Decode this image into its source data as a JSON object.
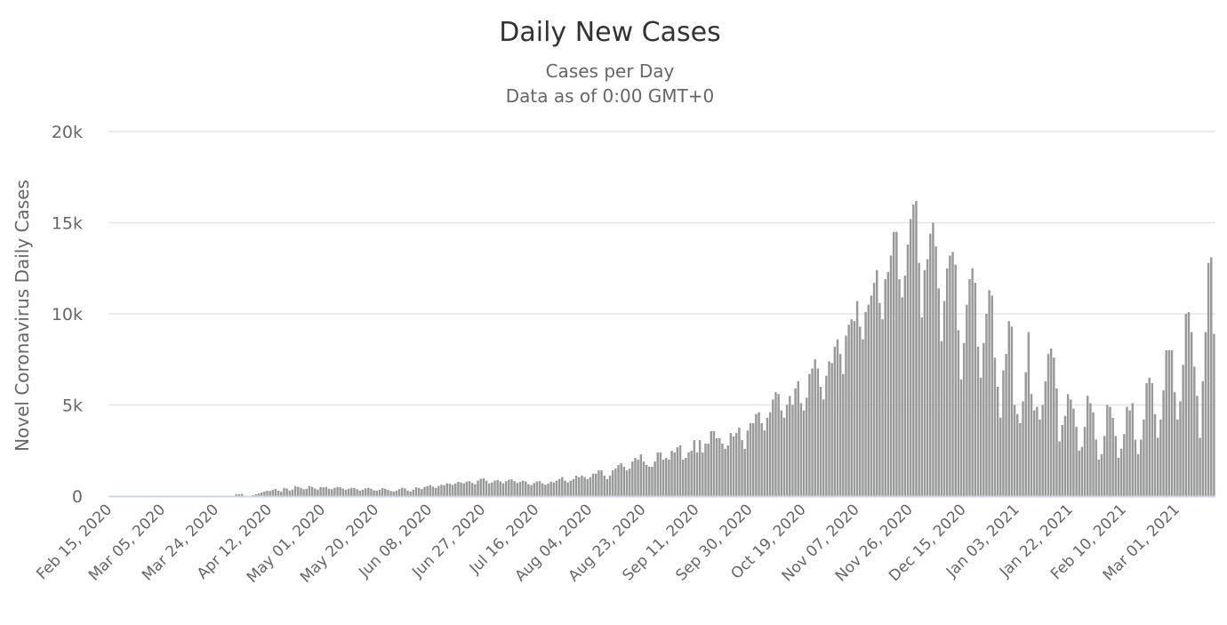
{
  "chart_data": {
    "type": "bar",
    "title": "Daily New Cases",
    "subtitle_lines": [
      "Cases per Day",
      "Data as of 0:00 GMT+0"
    ],
    "xlabel": "",
    "ylabel": "Novel Coronavirus Daily Cases",
    "x_start_date": "2020-02-15",
    "x_interval_days": 1,
    "x_tick_every": 19,
    "x_tick_labels": [
      "Feb 15, 2020",
      "Mar 05, 2020",
      "Mar 24, 2020",
      "Apr 12, 2020",
      "May 01, 2020",
      "May 20, 2020",
      "Jun 08, 2020",
      "Jun 27, 2020",
      "Jul 16, 2020",
      "Aug 04, 2020",
      "Aug 23, 2020",
      "Sep 11, 2020",
      "Sep 30, 2020",
      "Oct 19, 2020",
      "Nov 07, 2020",
      "Nov 26, 2020",
      "Dec 15, 2020",
      "Jan 03, 2021",
      "Jan 22, 2021",
      "Feb 10, 2021",
      "Mar 01, 2021"
    ],
    "y_tick_values": [
      0,
      5000,
      10000,
      15000,
      20000
    ],
    "y_tick_labels": [
      "0",
      "5k",
      "10k",
      "15k",
      "20k"
    ],
    "ylim": [
      0,
      20000
    ],
    "grid": true,
    "legend": "none",
    "bar_color": "#999999",
    "value_unit": "thousands of cases",
    "values_thousands": [
      0,
      0,
      0,
      0,
      0,
      0,
      0,
      0,
      0,
      0,
      0,
      0,
      0,
      0,
      0,
      0,
      0,
      0,
      0,
      0,
      0,
      0,
      0,
      0,
      0,
      0,
      0,
      0,
      0,
      0,
      0,
      0,
      0,
      0,
      0,
      0,
      0,
      0,
      0,
      0,
      0,
      0,
      0,
      0,
      0,
      0.1,
      0.1,
      0.12,
      0,
      0,
      0,
      0.05,
      0.1,
      0.15,
      0.2,
      0.25,
      0.3,
      0.28,
      0.35,
      0.4,
      0.3,
      0.25,
      0.45,
      0.42,
      0.3,
      0.35,
      0.55,
      0.5,
      0.45,
      0.38,
      0.4,
      0.55,
      0.5,
      0.42,
      0.35,
      0.5,
      0.48,
      0.5,
      0.4,
      0.38,
      0.45,
      0.5,
      0.48,
      0.42,
      0.35,
      0.4,
      0.45,
      0.44,
      0.38,
      0.3,
      0.35,
      0.42,
      0.45,
      0.4,
      0.32,
      0.3,
      0.35,
      0.44,
      0.4,
      0.35,
      0.28,
      0.25,
      0.3,
      0.38,
      0.45,
      0.42,
      0.3,
      0.25,
      0.35,
      0.48,
      0.45,
      0.38,
      0.5,
      0.55,
      0.6,
      0.52,
      0.45,
      0.55,
      0.62,
      0.6,
      0.7,
      0.68,
      0.62,
      0.7,
      0.78,
      0.75,
      0.7,
      0.8,
      0.82,
      0.72,
      0.65,
      0.85,
      0.95,
      0.98,
      0.85,
      0.7,
      0.75,
      0.85,
      0.88,
      0.8,
      0.7,
      0.82,
      0.9,
      0.92,
      0.82,
      0.72,
      0.78,
      0.85,
      0.8,
      0.65,
      0.6,
      0.72,
      0.8,
      0.82,
      0.7,
      0.62,
      0.68,
      0.78,
      0.75,
      0.85,
      0.93,
      1.04,
      0.85,
      0.75,
      0.85,
      0.93,
      1.12,
      1.04,
      1.12,
      1.04,
      0.93,
      1.04,
      1.23,
      1.23,
      1.41,
      1.41,
      1.12,
      0.93,
      1.12,
      1.41,
      1.51,
      1.71,
      1.8,
      1.61,
      1.41,
      1.51,
      1.9,
      2.1,
      2.0,
      2.29,
      1.9,
      1.71,
      1.61,
      1.61,
      1.9,
      2.39,
      2.39,
      2.0,
      2.1,
      2.0,
      2.49,
      2.39,
      2.68,
      2.78,
      2.0,
      2.1,
      2.39,
      2.49,
      3.07,
      2.39,
      3.07,
      2.39,
      2.88,
      2.88,
      3.56,
      3.56,
      3.17,
      3.17,
      2.88,
      2.59,
      2.78,
      3.46,
      3.27,
      3.46,
      3.76,
      3.07,
      2.59,
      3.6,
      4.0,
      4.0,
      4.5,
      4.6,
      4.0,
      3.6,
      4.3,
      4.6,
      5.3,
      5.7,
      5.6,
      4.7,
      4.3,
      5.0,
      5.5,
      5.0,
      5.9,
      6.3,
      5.1,
      4.7,
      5.4,
      6.7,
      7.0,
      7.5,
      7.0,
      6.0,
      5.3,
      6.6,
      7.4,
      7.3,
      8.2,
      8.6,
      7.8,
      6.7,
      8.8,
      9.4,
      9.7,
      9.6,
      10.7,
      9.3,
      8.6,
      10.1,
      10.5,
      11.0,
      11.7,
      12.4,
      10.6,
      9.7,
      11.9,
      12.3,
      13.2,
      14.5,
      14.5,
      11.9,
      10.9,
      12.1,
      13.8,
      15.2,
      16.0,
      16.2,
      12.8,
      9.8,
      12.4,
      13.0,
      14.4,
      15.0,
      13.7,
      11.4,
      8.5,
      10.7,
      12.5,
      13.2,
      13.4,
      12.7,
      9.1,
      6.4,
      8.4,
      10.5,
      11.9,
      12.5,
      11.7,
      8.2,
      6.5,
      8.4,
      10.0,
      11.3,
      11.0,
      7.6,
      6.0,
      4.3,
      6.9,
      7.8,
      9.6,
      9.3,
      5.0,
      4.5,
      4.0,
      5.2,
      6.8,
      9.0,
      5.6,
      4.7,
      4.9,
      4.2,
      5.0,
      6.3,
      7.8,
      8.1,
      7.6,
      5.9,
      3.0,
      3.9,
      4.4,
      5.6,
      5.3,
      4.8,
      3.8,
      2.5,
      2.7,
      3.8,
      5.5,
      5.1,
      4.6,
      3.1,
      2.0,
      2.3,
      3.3,
      5.0,
      4.9,
      4.3,
      3.3,
      2.1,
      2.6,
      3.4,
      4.9,
      4.7,
      5.1,
      3.1,
      2.3,
      3.1,
      4.2,
      6.2,
      6.5,
      6.2,
      4.5,
      3.2,
      4.2,
      5.8,
      8.0,
      8.0,
      8.0,
      5.7,
      4.2,
      5.2,
      7.2,
      10.0,
      10.1,
      9.0,
      7.1,
      5.5,
      3.2,
      6.3,
      9.0,
      12.8,
      13.1,
      8.9
    ]
  }
}
